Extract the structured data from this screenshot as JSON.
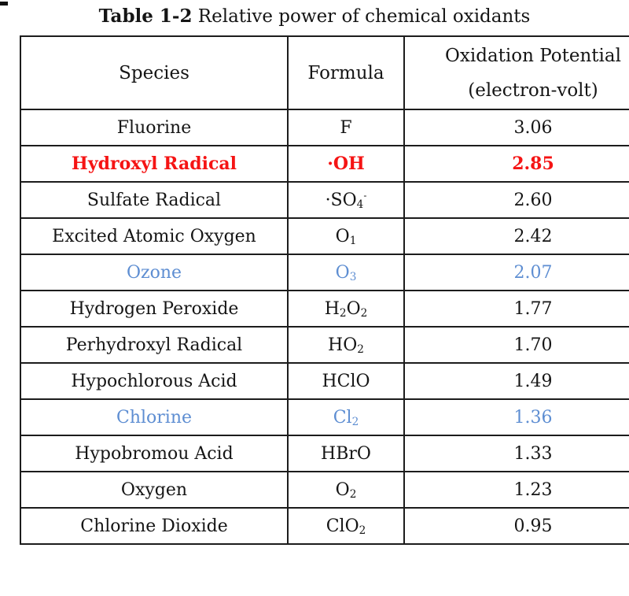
{
  "title": {
    "prefix": "Table 1-2",
    "rest": " Relative power of chemical oxidants"
  },
  "table": {
    "headers": {
      "species": "Species",
      "formula": "Formula",
      "potential_line1": "Oxidation Potential",
      "potential_line2": "(electron-volt)"
    },
    "rows": [
      {
        "species": "Fluorine",
        "formula": [
          {
            "t": "txt",
            "v": "F"
          }
        ],
        "value": "3.06",
        "color": "black"
      },
      {
        "species": "Hydroxyl Radical",
        "formula": [
          {
            "t": "txt",
            "v": "·OH"
          }
        ],
        "value": "2.85",
        "color": "red"
      },
      {
        "species": "Sulfate Radical",
        "formula": [
          {
            "t": "txt",
            "v": "·SO"
          },
          {
            "t": "sub",
            "v": "4"
          },
          {
            "t": "sup",
            "v": "-"
          }
        ],
        "value": "2.60",
        "color": "black"
      },
      {
        "species": "Excited Atomic Oxygen",
        "formula": [
          {
            "t": "txt",
            "v": "O"
          },
          {
            "t": "sub",
            "v": "1"
          }
        ],
        "value": "2.42",
        "color": "black"
      },
      {
        "species": "Ozone",
        "formula": [
          {
            "t": "txt",
            "v": "O"
          },
          {
            "t": "sub",
            "v": "3"
          }
        ],
        "value": "2.07",
        "color": "blue"
      },
      {
        "species": "Hydrogen Peroxide",
        "formula": [
          {
            "t": "txt",
            "v": "H"
          },
          {
            "t": "sub",
            "v": "2"
          },
          {
            "t": "txt",
            "v": "O"
          },
          {
            "t": "sub",
            "v": "2"
          }
        ],
        "value": "1.77",
        "color": "black"
      },
      {
        "species": "Perhydroxyl Radical",
        "formula": [
          {
            "t": "txt",
            "v": "HO"
          },
          {
            "t": "sub",
            "v": "2"
          }
        ],
        "value": "1.70",
        "color": "black"
      },
      {
        "species": "Hypochlorous Acid",
        "formula": [
          {
            "t": "txt",
            "v": "HClO"
          }
        ],
        "value": "1.49",
        "color": "black"
      },
      {
        "species": "Chlorine",
        "formula": [
          {
            "t": "txt",
            "v": "Cl"
          },
          {
            "t": "sub",
            "v": "2"
          }
        ],
        "value": "1.36",
        "color": "blue"
      },
      {
        "species": "Hypobromou Acid",
        "formula": [
          {
            "t": "txt",
            "v": "HBrO"
          }
        ],
        "value": "1.33",
        "color": "black"
      },
      {
        "species": "Oxygen",
        "formula": [
          {
            "t": "txt",
            "v": "O"
          },
          {
            "t": "sub",
            "v": "2"
          }
        ],
        "value": "1.23",
        "color": "black"
      },
      {
        "species": "Chlorine Dioxide",
        "formula": [
          {
            "t": "txt",
            "v": "ClO"
          },
          {
            "t": "sub",
            "v": "2"
          }
        ],
        "value": "0.95",
        "color": "black"
      }
    ]
  },
  "colors": {
    "highlight_red": "#f51414",
    "highlight_blue": "#5e8ed2",
    "text": "#151515",
    "border": "#1c1c1c",
    "background": "#ffffff"
  },
  "chart_data": {
    "type": "table",
    "title": "Table 1-2 Relative power of chemical oxidants",
    "columns": [
      "Species",
      "Formula",
      "Oxidation Potential (electron-volt)"
    ],
    "rows": [
      [
        "Fluorine",
        "F",
        3.06
      ],
      [
        "Hydroxyl Radical",
        "·OH",
        2.85
      ],
      [
        "Sulfate Radical",
        "·SO4-",
        2.6
      ],
      [
        "Excited Atomic Oxygen",
        "O1",
        2.42
      ],
      [
        "Ozone",
        "O3",
        2.07
      ],
      [
        "Hydrogen Peroxide",
        "H2O2",
        1.77
      ],
      [
        "Perhydroxyl Radical",
        "HO2",
        1.7
      ],
      [
        "Hypochlorous Acid",
        "HClO",
        1.49
      ],
      [
        "Chlorine",
        "Cl2",
        1.36
      ],
      [
        "Hypobromou Acid",
        "HBrO",
        1.33
      ],
      [
        "Oxygen",
        "O2",
        1.23
      ],
      [
        "Chlorine Dioxide",
        "ClO2",
        0.95
      ]
    ],
    "row_emphasis": {
      "red_rows": [
        "Hydroxyl Radical"
      ],
      "blue_rows": [
        "Ozone",
        "Chlorine"
      ]
    }
  }
}
